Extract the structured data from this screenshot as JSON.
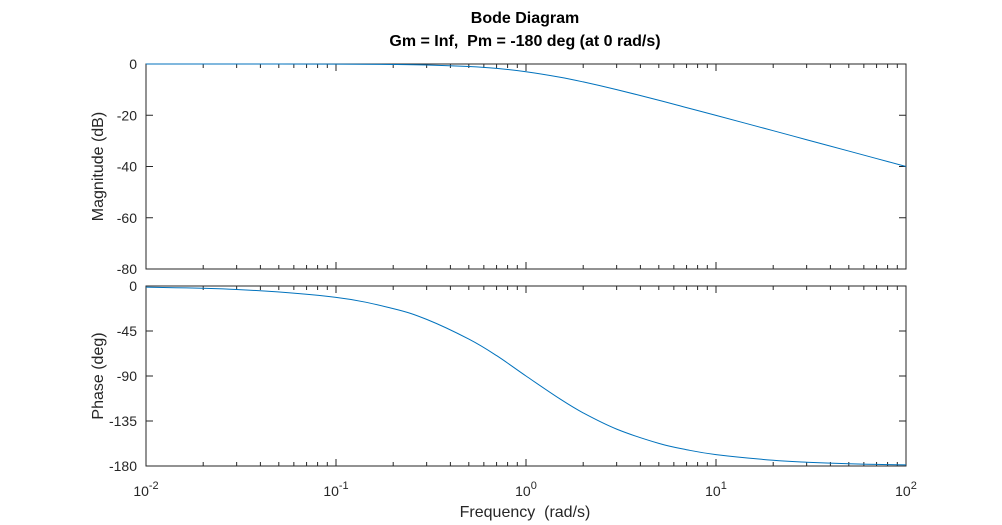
{
  "chart_data": {
    "type": "line",
    "title": "Bode Diagram",
    "subtitle": "Gm = Inf,  Pm = -180 deg (at 0 rad/s)",
    "xlabel": "Frequency  (rad/s)",
    "xscale": "log",
    "xlim": [
      0.01,
      100
    ],
    "x_ticks": [
      {
        "base": "10",
        "exp": "-2"
      },
      {
        "base": "10",
        "exp": "-1"
      },
      {
        "base": "10",
        "exp": "0"
      },
      {
        "base": "10",
        "exp": "1"
      },
      {
        "base": "10",
        "exp": "2"
      }
    ],
    "color": "#0072bd",
    "panels": [
      {
        "name": "magnitude",
        "ylabel": "Magnitude (dB)",
        "ylim": [
          -80,
          0
        ],
        "yticks": [
          "0",
          "-20",
          "-40",
          "-60",
          "-80"
        ],
        "y_tick_values": [
          0,
          -20,
          -40,
          -60,
          -80
        ],
        "series": [
          {
            "x": [
              0.01,
              0.03,
              0.1,
              0.2,
              0.3,
              0.5,
              0.7,
              1,
              1.5,
              2,
              3,
              5,
              7,
              10,
              20,
              30,
              50,
              70,
              100
            ],
            "y": [
              0,
              0,
              -0.04,
              -0.17,
              -0.37,
              -0.97,
              -1.7,
              -3.01,
              -5.11,
              -6.99,
              -10,
              -14.15,
              -17.03,
              -20.04,
              -26.03,
              -29.55,
              -33.98,
              -36.9,
              -40
            ]
          }
        ]
      },
      {
        "name": "phase",
        "ylabel": "Phase (deg)",
        "ylim": [
          -180,
          0
        ],
        "yticks": [
          "0",
          "-45",
          "-90",
          "-135",
          "-180"
        ],
        "y_tick_values": [
          0,
          -45,
          -90,
          -135,
          -180
        ],
        "series": [
          {
            "x": [
              0.01,
              0.03,
              0.1,
              0.2,
              0.3,
              0.5,
              0.7,
              1,
              1.5,
              2,
              3,
              5,
              7,
              10,
              20,
              30,
              50,
              70,
              100
            ],
            "y": [
              -1.15,
              -3.44,
              -11.4,
              -22.6,
              -33.4,
              -53.1,
              -69.6,
              -90,
              -112.6,
              -126.9,
              -143.1,
              -157.4,
              -163.7,
              -168.6,
              -174.3,
              -176.2,
              -177.7,
              -178.4,
              -178.9
            ]
          }
        ]
      }
    ]
  }
}
